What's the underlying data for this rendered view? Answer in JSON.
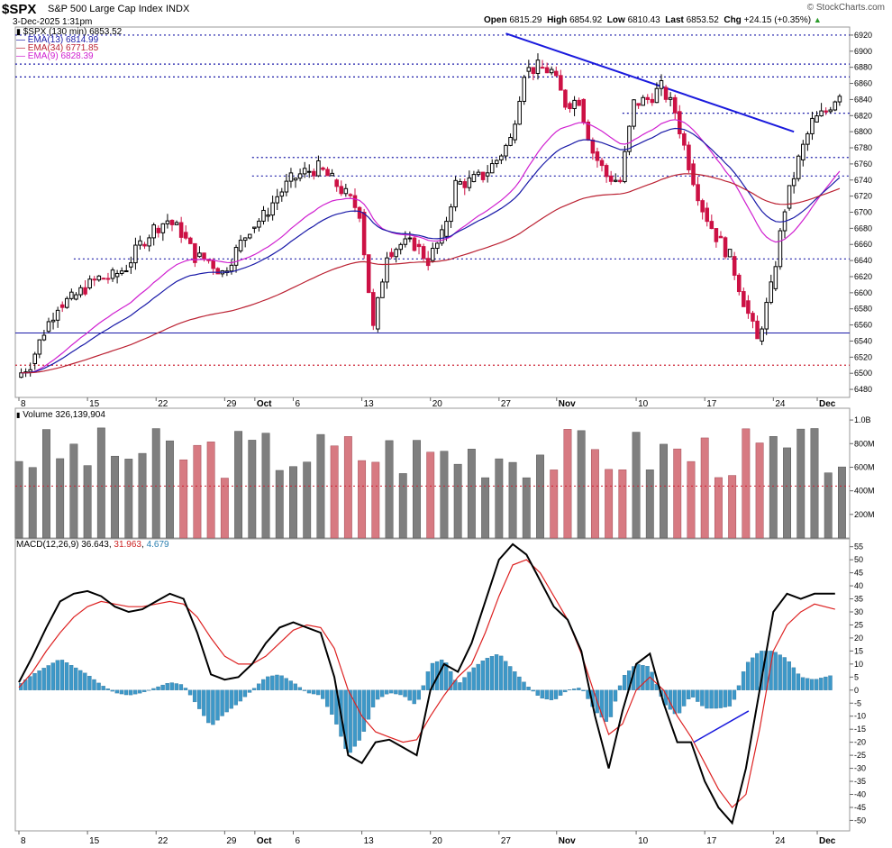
{
  "header": {
    "symbol": "$SPX",
    "name": "S&P 500 Large Cap Index",
    "exchange": "INDX",
    "datetime": "3-Dec-2025 1:31pm",
    "brand": "© StockCharts.com",
    "open_label": "Open",
    "open": "6815.29",
    "high_label": "High",
    "high": "6854.92",
    "low_label": "Low",
    "low": "6810.43",
    "last_label": "Last",
    "last": "6853.52",
    "chg_label": "Chg",
    "chg": "+24.15 (+0.35%)",
    "chg_arrow": "▲"
  },
  "legend": {
    "series": "$SPX (130 min) 6853.52",
    "ema13": "EMA(13) 6814.99",
    "ema34": "EMA(34) 6771.85",
    "ema9": "EMA(9) 6828.39"
  },
  "volume_label": "Volume 326,139,904",
  "macd_label": {
    "name": "MACD(12,26,9)",
    "v1": "36.643",
    "v2": "31.963",
    "v3": "4.679"
  },
  "x_ticks": [
    {
      "label": "8",
      "x": 0
    },
    {
      "label": "15",
      "x": 5
    },
    {
      "label": "22",
      "x": 10
    },
    {
      "label": "29",
      "x": 15
    },
    {
      "label": "Oct",
      "x": 17.2,
      "bold": true
    },
    {
      "label": "6",
      "x": 20
    },
    {
      "label": "13",
      "x": 25
    },
    {
      "label": "20",
      "x": 30
    },
    {
      "label": "27",
      "x": 35
    },
    {
      "label": "Nov",
      "x": 39.2,
      "bold": true
    },
    {
      "label": "10",
      "x": 45
    },
    {
      "label": "17",
      "x": 50
    },
    {
      "label": "24",
      "x": 55
    },
    {
      "label": "Dec",
      "x": 58.2,
      "bold": true
    }
  ],
  "colors": {
    "up": "#000000",
    "down": "#cc1144",
    "ema13": "#1a1aa8",
    "ema34": "#bb2233",
    "ema9": "#d020d0",
    "trend": "#1a1add",
    "vol_up": "#7f7f7f",
    "vol_down": "#d77a82",
    "hist": "#3d98c8",
    "macd": "#000000",
    "signal": "#dd2222"
  },
  "chart_data": [
    {
      "type": "candlestick",
      "title": "$SPX (130 min)",
      "x_unit": "trading days from Sep 8 2025",
      "ylim": [
        6470,
        6930
      ],
      "y_ticks": [
        6480,
        6500,
        6520,
        6540,
        6560,
        6580,
        6600,
        6620,
        6640,
        6660,
        6680,
        6700,
        6720,
        6740,
        6760,
        6780,
        6800,
        6820,
        6840,
        6860,
        6880,
        6900,
        6920
      ],
      "daily_closes": [
        6495,
        6512,
        6552,
        6585,
        6592,
        6606,
        6618,
        6620,
        6632,
        6660,
        6680,
        6690,
        6675,
        6645,
        6640,
        6625,
        6652,
        6680,
        6695,
        6720,
        6740,
        6750,
        6755,
        6740,
        6722,
        6700,
        6555,
        6650,
        6660,
        6660,
        6640,
        6670,
        6735,
        6738,
        6745,
        6765,
        6790,
        6875,
        6880,
        6875,
        6835,
        6840,
        6775,
        6745,
        6738,
        6835,
        6840,
        6855,
        6825,
        6760,
        6705,
        6670,
        6645,
        6590,
        6540,
        6605,
        6705,
        6765,
        6812,
        6825,
        6850
      ],
      "support_lines": [
        {
          "y": 6550,
          "style": "solid"
        },
        {
          "y": 6510,
          "style": "dotted",
          "color": "red"
        },
        {
          "y": 6642,
          "style": "dotted"
        },
        {
          "y": 6745,
          "style": "dotted"
        },
        {
          "y": 6768,
          "style": "dotted"
        },
        {
          "y": 6823,
          "style": "dotted"
        },
        {
          "y": 6868,
          "style": "dotted"
        },
        {
          "y": 6884,
          "style": "dotted"
        },
        {
          "y": 6920,
          "style": "dotted"
        }
      ],
      "trendline": {
        "from": [
          35.5,
          6922
        ],
        "to": [
          56.5,
          6800
        ]
      }
    },
    {
      "type": "bar",
      "title": "Volume",
      "ylim": [
        0,
        1100000000
      ],
      "y_ticks": [
        {
          "v": 200000000,
          "label": "200M"
        },
        {
          "v": 400000000,
          "label": "400M"
        },
        {
          "v": 600000000,
          "label": "600M"
        },
        {
          "v": 800000000,
          "label": "800M"
        },
        {
          "v": 1000000000,
          "label": "1.0B"
        }
      ],
      "avg_line": 440000000
    },
    {
      "type": "line",
      "title": "MACD(12,26,9)",
      "ylim": [
        -54,
        58
      ],
      "y_ticks": [
        -50,
        -45,
        -40,
        -35,
        -30,
        -25,
        -20,
        -15,
        -10,
        -5,
        0,
        5,
        10,
        15,
        20,
        25,
        30,
        35,
        40,
        45,
        50,
        55
      ],
      "macd_points": [
        [
          0,
          3
        ],
        [
          1,
          13
        ],
        [
          2,
          24
        ],
        [
          3,
          34
        ],
        [
          4,
          37
        ],
        [
          5,
          38
        ],
        [
          6,
          36
        ],
        [
          7,
          32
        ],
        [
          8,
          30
        ],
        [
          9,
          31
        ],
        [
          10,
          34
        ],
        [
          11,
          37
        ],
        [
          12,
          35
        ],
        [
          13,
          22
        ],
        [
          14,
          6
        ],
        [
          15,
          4
        ],
        [
          16,
          5
        ],
        [
          17,
          10
        ],
        [
          18,
          18
        ],
        [
          19,
          24
        ],
        [
          20,
          26
        ],
        [
          21,
          24
        ],
        [
          22,
          22
        ],
        [
          23,
          5
        ],
        [
          24,
          -25
        ],
        [
          25,
          -28
        ],
        [
          26,
          -20
        ],
        [
          27,
          -19
        ],
        [
          28,
          -22
        ],
        [
          29,
          -25
        ],
        [
          30,
          0
        ],
        [
          31,
          10
        ],
        [
          32,
          7
        ],
        [
          33,
          18
        ],
        [
          34,
          34
        ],
        [
          35,
          50
        ],
        [
          36,
          56
        ],
        [
          37,
          52
        ],
        [
          38,
          42
        ],
        [
          39,
          32
        ],
        [
          40,
          27
        ],
        [
          41,
          15
        ],
        [
          42,
          -10
        ],
        [
          43,
          -30
        ],
        [
          44,
          -8
        ],
        [
          45,
          10
        ],
        [
          46,
          14
        ],
        [
          47,
          -5
        ],
        [
          48,
          -20
        ],
        [
          49,
          -20
        ],
        [
          50,
          -35
        ],
        [
          51,
          -45
        ],
        [
          52,
          -51
        ],
        [
          53,
          -30
        ],
        [
          54,
          0
        ],
        [
          55,
          30
        ],
        [
          56,
          37
        ],
        [
          57,
          35
        ],
        [
          58,
          37
        ]
      ],
      "signal_points": [
        [
          0,
          1
        ],
        [
          1,
          7
        ],
        [
          2,
          15
        ],
        [
          3,
          22
        ],
        [
          4,
          28
        ],
        [
          5,
          32
        ],
        [
          6,
          34
        ],
        [
          7,
          33
        ],
        [
          8,
          32
        ],
        [
          9,
          32
        ],
        [
          10,
          33
        ],
        [
          11,
          34
        ],
        [
          12,
          33
        ],
        [
          13,
          28
        ],
        [
          14,
          20
        ],
        [
          15,
          13
        ],
        [
          16,
          10
        ],
        [
          17,
          10
        ],
        [
          18,
          13
        ],
        [
          19,
          18
        ],
        [
          20,
          23
        ],
        [
          21,
          25
        ],
        [
          22,
          24
        ],
        [
          23,
          16
        ],
        [
          24,
          0
        ],
        [
          25,
          -10
        ],
        [
          26,
          -16
        ],
        [
          27,
          -18
        ],
        [
          28,
          -20
        ],
        [
          29,
          -19
        ],
        [
          30,
          -10
        ],
        [
          31,
          -2
        ],
        [
          32,
          5
        ],
        [
          33,
          10
        ],
        [
          34,
          22
        ],
        [
          35,
          36
        ],
        [
          36,
          48
        ],
        [
          37,
          50
        ],
        [
          38,
          45
        ],
        [
          39,
          36
        ],
        [
          40,
          27
        ],
        [
          41,
          14
        ],
        [
          42,
          -2
        ],
        [
          43,
          -17
        ],
        [
          44,
          -13
        ],
        [
          45,
          0
        ],
        [
          46,
          5
        ],
        [
          47,
          0
        ],
        [
          48,
          -10
        ],
        [
          49,
          -18
        ],
        [
          50,
          -28
        ],
        [
          51,
          -38
        ],
        [
          52,
          -45
        ],
        [
          53,
          -40
        ],
        [
          54,
          -15
        ],
        [
          55,
          15
        ],
        [
          56,
          25
        ],
        [
          57,
          30
        ],
        [
          58,
          33
        ]
      ],
      "signal_tail": [
        [
          58,
          33
        ],
        [
          59.5,
          31
        ]
      ],
      "macd_tail": [
        [
          58,
          37
        ],
        [
          59.5,
          37
        ]
      ],
      "divergence_line": {
        "from": [
          49.2,
          -20
        ],
        "to": [
          53.2,
          -8
        ]
      }
    }
  ]
}
